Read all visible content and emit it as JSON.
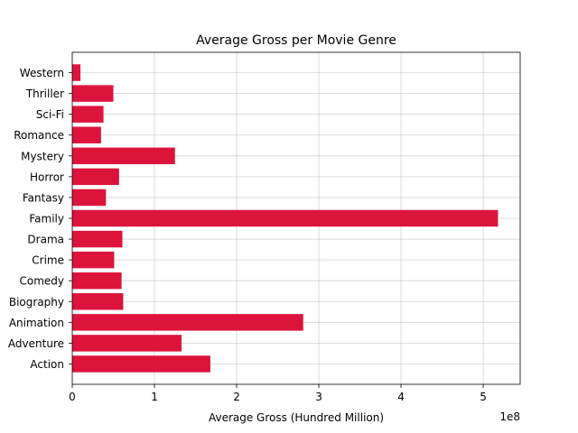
{
  "chart_data": {
    "type": "bar",
    "orientation": "horizontal",
    "title": "Average Gross per Movie Genre",
    "xlabel": "Average Gross (Hundred Million)",
    "ylabel": "",
    "offset_text": "1e8",
    "xlim": [
      0,
      5.45
    ],
    "xticks": [
      0,
      1,
      2,
      3,
      4,
      5
    ],
    "bar_color": "#dc143c",
    "grid": true,
    "categories": [
      "Action",
      "Adventure",
      "Animation",
      "Biography",
      "Comedy",
      "Crime",
      "Drama",
      "Family",
      "Fantasy",
      "Horror",
      "Mystery",
      "Romance",
      "Sci-Fi",
      "Thriller",
      "Western"
    ],
    "values": [
      1.68,
      1.33,
      2.81,
      0.62,
      0.6,
      0.51,
      0.61,
      5.18,
      0.41,
      0.57,
      1.25,
      0.35,
      0.38,
      0.5,
      0.1
    ],
    "value_unit_multiplier": 100000000
  }
}
